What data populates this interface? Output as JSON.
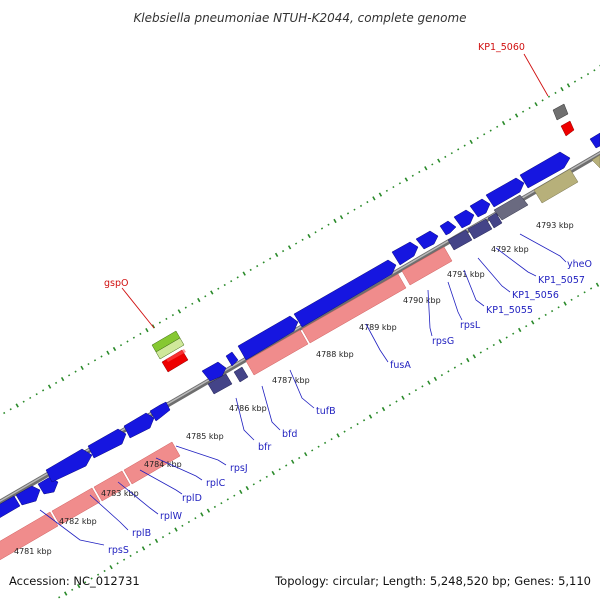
{
  "title": "Klebsiella pneumoniae NTUH-K2044, complete genome",
  "footer": {
    "accession": "Accession: NC_012731",
    "summary": "Topology: circular; Length: 5,248,520 bp; Genes: 5,110"
  },
  "colors": {
    "backbone": "#808080",
    "gc_dots": "#2a8a2a",
    "cds_forward": "#1616e0",
    "cds_forward_dim": "#444488",
    "cds_reverse": "#f08c8c",
    "highlight_red": "#ee0000",
    "olive": "#b7b07a",
    "gray": "#707070",
    "label_blue": "#1f1fbf",
    "label_red": "#d01010"
  },
  "kbp_labels": [
    "4781 kbp",
    "4782 kbp",
    "4783 kbp",
    "4784 kbp",
    "4785 kbp",
    "4786 kbp",
    "4787 kbp",
    "4788 kbp",
    "4789 kbp",
    "4790 kbp",
    "4791 kbp",
    "4792 kbp",
    "4793 kbp"
  ],
  "gene_labels": {
    "rpsS": "rpsS",
    "rplB": "rplB",
    "rplW": "rplW",
    "rplD": "rplD",
    "rplC": "rplC",
    "rpsJ": "rpsJ",
    "bfr": "bfr",
    "bfd": "bfd",
    "tufB": "tufB",
    "fusA": "fusA",
    "rpsG": "rpsG",
    "rpsL": "rpsL",
    "kp1_5055": "KP1_5055",
    "kp1_5056": "KP1_5056",
    "kp1_5057": "KP1_5057",
    "yheO": "yheO",
    "gspO": "gspO",
    "kp1_5060": "KP1_5060"
  }
}
